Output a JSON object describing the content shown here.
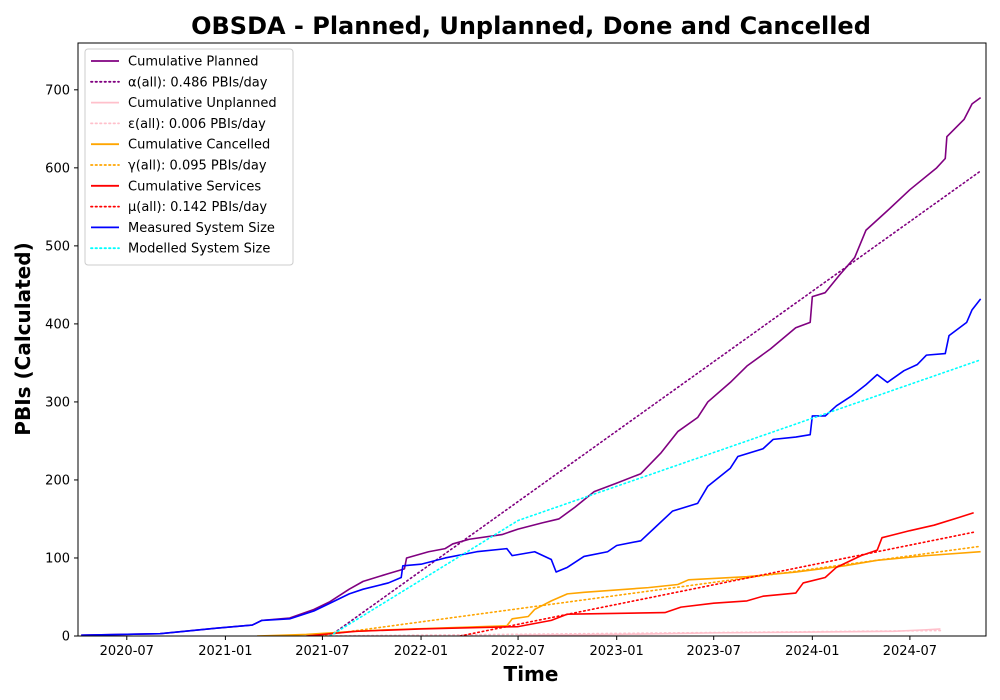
{
  "chart_data": {
    "type": "line",
    "title": "OBSDA - Planned, Unplanned, Done  and Cancelled",
    "xlabel": "Time",
    "ylabel": "PBIs (Calculated)",
    "xlim": [
      "2020-04-01",
      "2024-11-20"
    ],
    "ylim": [
      0,
      760
    ],
    "x_ticks": [
      "2020-07",
      "2021-01",
      "2021-07",
      "2022-01",
      "2022-07",
      "2023-01",
      "2023-07",
      "2024-01",
      "2024-07"
    ],
    "y_ticks": [
      0,
      100,
      200,
      300,
      400,
      500,
      600,
      700
    ],
    "grid": false,
    "legend_position": "top-left",
    "series": [
      {
        "name": "Cumulative Planned",
        "color": "#800080",
        "dash": "solid",
        "points": [
          [
            "2020-04-07",
            1
          ],
          [
            "2020-09-01",
            3
          ],
          [
            "2020-12-15",
            10
          ],
          [
            "2021-02-20",
            14
          ],
          [
            "2021-03-10",
            20
          ],
          [
            "2021-05-01",
            23
          ],
          [
            "2021-06-15",
            34
          ],
          [
            "2021-07-15",
            44
          ],
          [
            "2021-08-20",
            60
          ],
          [
            "2021-09-15",
            70
          ],
          [
            "2021-11-01",
            80
          ],
          [
            "2021-12-01",
            86
          ],
          [
            "2021-12-05",
            100
          ],
          [
            "2022-01-15",
            108
          ],
          [
            "2022-02-15",
            112
          ],
          [
            "2022-03-01",
            118
          ],
          [
            "2022-04-01",
            124
          ],
          [
            "2022-06-01",
            130
          ],
          [
            "2022-07-01",
            137
          ],
          [
            "2022-08-15",
            145
          ],
          [
            "2022-09-15",
            150
          ],
          [
            "2022-10-15",
            165
          ],
          [
            "2022-11-20",
            185
          ],
          [
            "2023-01-01",
            196
          ],
          [
            "2023-02-15",
            208
          ],
          [
            "2023-03-25",
            235
          ],
          [
            "2023-04-25",
            262
          ],
          [
            "2023-06-01",
            280
          ],
          [
            "2023-06-20",
            300
          ],
          [
            "2023-08-01",
            325
          ],
          [
            "2023-09-01",
            346
          ],
          [
            "2023-10-15",
            368
          ],
          [
            "2023-12-01",
            395
          ],
          [
            "2023-12-28",
            402
          ],
          [
            "2024-01-01",
            435
          ],
          [
            "2024-01-25",
            440
          ],
          [
            "2024-02-20",
            462
          ],
          [
            "2024-03-20",
            485
          ],
          [
            "2024-04-10",
            520
          ],
          [
            "2024-05-20",
            545
          ],
          [
            "2024-07-01",
            572
          ],
          [
            "2024-08-20",
            600
          ],
          [
            "2024-09-05",
            612
          ],
          [
            "2024-09-08",
            640
          ],
          [
            "2024-10-10",
            662
          ],
          [
            "2024-10-25",
            682
          ],
          [
            "2024-11-10",
            690
          ]
        ]
      },
      {
        "name": "α(all): 0.486 PBIs/day",
        "color": "#800080",
        "dash": "dotted",
        "points": [
          [
            "2021-07-15",
            0
          ],
          [
            "2024-11-10",
            596
          ]
        ]
      },
      {
        "name": "Cumulative Unplanned",
        "color": "#ffc0cb",
        "dash": "solid",
        "points": [
          [
            "2022-07-01",
            1
          ],
          [
            "2023-01-01",
            2
          ],
          [
            "2023-07-01",
            4
          ],
          [
            "2024-01-01",
            5
          ],
          [
            "2024-06-01",
            6
          ],
          [
            "2024-08-01",
            8
          ],
          [
            "2024-08-27",
            9
          ]
        ]
      },
      {
        "name": "ε(all): 0.006 PBIs/day",
        "color": "#ffc0cb",
        "dash": "dotted",
        "points": [
          [
            "2021-07-01",
            0
          ],
          [
            "2024-08-27",
            7
          ]
        ]
      },
      {
        "name": "Cumulative Cancelled",
        "color": "#ffa500",
        "dash": "solid",
        "points": [
          [
            "2021-03-01",
            0
          ],
          [
            "2021-06-01",
            2
          ],
          [
            "2021-09-01",
            6
          ],
          [
            "2021-11-01",
            8
          ],
          [
            "2022-06-10",
            13
          ],
          [
            "2022-06-20",
            22
          ],
          [
            "2022-07-20",
            25
          ],
          [
            "2022-08-01",
            34
          ],
          [
            "2022-09-01",
            45
          ],
          [
            "2022-10-01",
            54
          ],
          [
            "2022-11-01",
            56
          ],
          [
            "2023-03-01",
            62
          ],
          [
            "2023-04-25",
            66
          ],
          [
            "2023-05-15",
            72
          ],
          [
            "2023-09-01",
            76
          ],
          [
            "2023-12-01",
            82
          ],
          [
            "2024-03-01",
            90
          ],
          [
            "2024-05-01",
            97
          ],
          [
            "2024-08-01",
            103
          ],
          [
            "2024-11-10",
            108
          ]
        ]
      },
      {
        "name": "γ(all): 0.095 PBIs/day",
        "color": "#ffa500",
        "dash": "dotted",
        "points": [
          [
            "2021-06-20",
            0
          ],
          [
            "2024-11-10",
            115
          ]
        ]
      },
      {
        "name": "Cumulative Services",
        "color": "#ff0000",
        "dash": "solid",
        "points": [
          [
            "2021-06-01",
            0
          ],
          [
            "2021-09-01",
            6
          ],
          [
            "2022-01-01",
            9
          ],
          [
            "2022-07-01",
            12
          ],
          [
            "2022-09-01",
            20
          ],
          [
            "2022-10-01",
            28
          ],
          [
            "2023-04-01",
            30
          ],
          [
            "2023-05-01",
            37
          ],
          [
            "2023-07-01",
            42
          ],
          [
            "2023-09-01",
            45
          ],
          [
            "2023-10-01",
            51
          ],
          [
            "2023-12-01",
            55
          ],
          [
            "2023-12-15",
            68
          ],
          [
            "2024-01-25",
            75
          ],
          [
            "2024-02-15",
            88
          ],
          [
            "2024-04-01",
            103
          ],
          [
            "2024-05-01",
            110
          ],
          [
            "2024-05-10",
            126
          ],
          [
            "2024-07-01",
            135
          ],
          [
            "2024-08-15",
            142
          ],
          [
            "2024-10-01",
            152
          ],
          [
            "2024-10-28",
            158
          ]
        ]
      },
      {
        "name": "μ(all): 0.142 PBIs/day",
        "color": "#ff0000",
        "dash": "dotted",
        "points": [
          [
            "2022-03-15",
            0
          ],
          [
            "2024-10-28",
            133
          ]
        ]
      },
      {
        "name": "Measured System Size",
        "color": "#0000ff",
        "dash": "solid",
        "points": [
          [
            "2020-04-07",
            1
          ],
          [
            "2020-09-01",
            3
          ],
          [
            "2020-12-15",
            10
          ],
          [
            "2021-02-20",
            14
          ],
          [
            "2021-03-10",
            20
          ],
          [
            "2021-05-01",
            22
          ],
          [
            "2021-06-15",
            32
          ],
          [
            "2021-07-15",
            42
          ],
          [
            "2021-08-20",
            54
          ],
          [
            "2021-09-15",
            60
          ],
          [
            "2021-11-01",
            68
          ],
          [
            "2021-11-25",
            75
          ],
          [
            "2021-11-28",
            90
          ],
          [
            "2022-01-01",
            92
          ],
          [
            "2022-02-15",
            100
          ],
          [
            "2022-04-15",
            108
          ],
          [
            "2022-06-10",
            112
          ],
          [
            "2022-06-20",
            103
          ],
          [
            "2022-08-01",
            108
          ],
          [
            "2022-09-01",
            98
          ],
          [
            "2022-09-10",
            82
          ],
          [
            "2022-10-01",
            88
          ],
          [
            "2022-11-01",
            102
          ],
          [
            "2022-12-15",
            108
          ],
          [
            "2023-01-01",
            116
          ],
          [
            "2023-02-15",
            122
          ],
          [
            "2023-03-15",
            140
          ],
          [
            "2023-04-15",
            160
          ],
          [
            "2023-06-01",
            170
          ],
          [
            "2023-06-20",
            192
          ],
          [
            "2023-08-01",
            215
          ],
          [
            "2023-08-15",
            230
          ],
          [
            "2023-10-01",
            240
          ],
          [
            "2023-10-20",
            252
          ],
          [
            "2023-12-01",
            255
          ],
          [
            "2023-12-28",
            258
          ],
          [
            "2024-01-01",
            282
          ],
          [
            "2024-01-25",
            282
          ],
          [
            "2024-02-15",
            295
          ],
          [
            "2024-03-15",
            308
          ],
          [
            "2024-04-10",
            322
          ],
          [
            "2024-05-01",
            335
          ],
          [
            "2024-05-20",
            325
          ],
          [
            "2024-06-20",
            340
          ],
          [
            "2024-07-15",
            348
          ],
          [
            "2024-08-01",
            360
          ],
          [
            "2024-09-05",
            362
          ],
          [
            "2024-09-12",
            385
          ],
          [
            "2024-10-15",
            402
          ],
          [
            "2024-10-25",
            418
          ],
          [
            "2024-11-10",
            432
          ]
        ]
      },
      {
        "name": "Modelled System Size",
        "color": "#00ffff",
        "dash": "dotted",
        "points": [
          [
            "2021-07-15",
            0
          ],
          [
            "2022-07-01",
            148
          ],
          [
            "2024-11-10",
            354
          ]
        ]
      }
    ]
  }
}
